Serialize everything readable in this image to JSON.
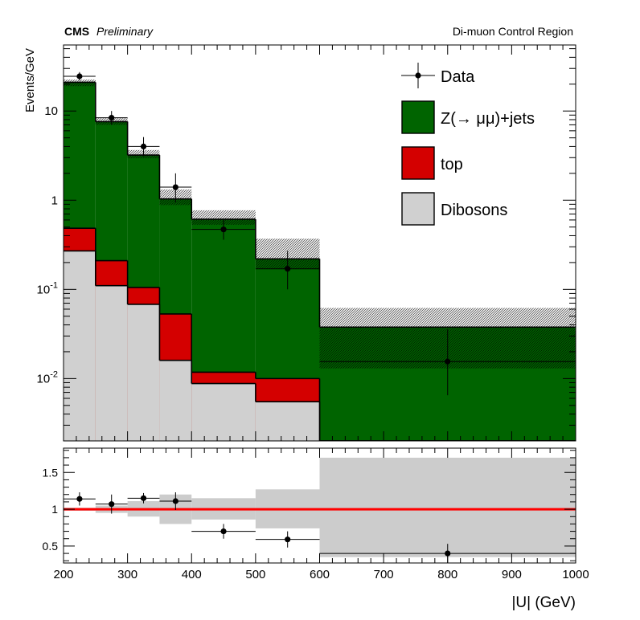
{
  "header": {
    "experiment": "CMS",
    "status": "Preliminary",
    "region": "Di-muon Control Region"
  },
  "chart_data": {
    "type": "bar",
    "subtype": "stacked-histogram-with-ratio-panel",
    "xlabel": "|U| (GeV)",
    "ylabel": "Events/GeV",
    "x_range": [
      200,
      1000
    ],
    "x_tick_labels": [
      "200",
      "300",
      "400",
      "500",
      "600",
      "700",
      "800",
      "900",
      "1000"
    ],
    "y_scale": "log",
    "y_range": [
      0.002,
      55
    ],
    "y_tick_labels": [
      {
        "value": 10,
        "base": "10",
        "exp": ""
      },
      {
        "value": 1,
        "base": "1",
        "exp": ""
      },
      {
        "value": 0.1,
        "base": "10",
        "exp": "-1"
      },
      {
        "value": 0.01,
        "base": "10",
        "exp": "-2"
      }
    ],
    "bin_edges": [
      200,
      250,
      300,
      350,
      400,
      500,
      600,
      1000
    ],
    "stack": [
      {
        "name": "Dibosons",
        "color": "#d0d0d0",
        "values": [
          0.27,
          0.11,
          0.068,
          0.016,
          0.0088,
          0.0055,
          0.0001
        ]
      },
      {
        "name": "top",
        "color": "#d40000",
        "values": [
          0.215,
          0.1,
          0.037,
          0.037,
          0.003,
          0.0045,
          0.0002
        ]
      },
      {
        "name": "Z(→ μμ)+jets",
        "color": "#006400",
        "values": [
          20.5,
          7.4,
          3.1,
          0.98,
          0.6,
          0.21,
          0.0375
        ]
      }
    ],
    "stat_band": {
      "low": [
        19.0,
        7.0,
        2.95,
        0.88,
        0.53,
        0.17,
        0.013
      ],
      "high": [
        22.5,
        8.3,
        3.65,
        1.32,
        0.77,
        0.37,
        0.062
      ]
    },
    "data": {
      "name": "Data",
      "x": [
        225,
        275,
        325,
        375,
        450,
        550,
        800
      ],
      "y": [
        24.5,
        8.4,
        4.0,
        1.4,
        0.47,
        0.17,
        0.0155
      ],
      "yerr_low": [
        2.5,
        1.4,
        0.9,
        0.45,
        0.11,
        0.07,
        0.009
      ],
      "yerr_high": [
        2.8,
        1.6,
        1.1,
        0.6,
        0.13,
        0.1,
        0.02
      ],
      "xerr": [
        25,
        25,
        25,
        25,
        50,
        50,
        200
      ]
    },
    "legend": {
      "placement": "top-right",
      "entries": [
        "Data",
        "Z(→ μμ)+jets",
        "top",
        "Dibosons"
      ]
    },
    "ratio": {
      "y_range": [
        0.27,
        1.83
      ],
      "y_tick_labels": [
        "0.5",
        "1",
        "1.5"
      ],
      "reference_line": 1.0,
      "reference_color": "#ff0000",
      "band_low": [
        0.98,
        0.95,
        0.9,
        0.8,
        0.86,
        0.74,
        0.35
      ],
      "band_high": [
        1.02,
        1.05,
        1.11,
        1.2,
        1.15,
        1.27,
        1.7
      ],
      "points": [
        1.14,
        1.07,
        1.15,
        1.11,
        0.7,
        0.59,
        0.4
      ],
      "err": [
        0.09,
        0.13,
        0.07,
        0.12,
        0.1,
        0.11,
        0.13
      ]
    }
  }
}
